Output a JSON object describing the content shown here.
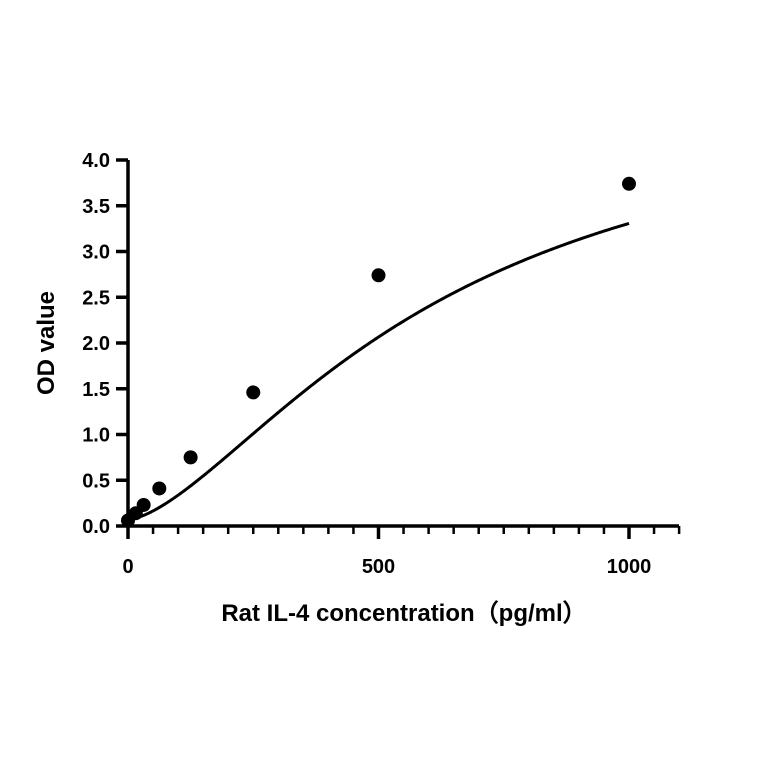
{
  "chart_data": {
    "type": "scatter",
    "title": "",
    "xlabel": "Rat IL-4 concentration（pg/ml）",
    "ylabel": "OD value",
    "xlim": [
      0,
      1100
    ],
    "ylim": [
      0,
      4.0
    ],
    "x_ticks": [
      0,
      500,
      1000
    ],
    "x_tick_labels": [
      "0",
      "500",
      "1000"
    ],
    "x_minor_step": 50,
    "y_ticks": [
      0,
      0.5,
      1.0,
      1.5,
      2.0,
      2.5,
      3.0,
      3.5,
      4.0
    ],
    "y_tick_labels": [
      "0.0",
      "0.5",
      "1.0",
      "1.5",
      "2.0",
      "2.5",
      "3.0",
      "3.5",
      "4.0"
    ],
    "grid": false,
    "legend": "none",
    "colors": {
      "points": "#000000",
      "curve": "#000000",
      "axis": "#000000"
    },
    "series": [
      {
        "x": [
          0,
          15.6,
          31.25,
          62.5,
          125,
          250,
          500,
          1000
        ],
        "y": [
          0.06,
          0.14,
          0.23,
          0.41,
          0.75,
          1.46,
          2.74,
          3.74
        ]
      }
    ],
    "fit_curve": {
      "kind": "4PL",
      "a": 0.07,
      "b": 1.55,
      "c": 620,
      "d": 4.85
    }
  }
}
